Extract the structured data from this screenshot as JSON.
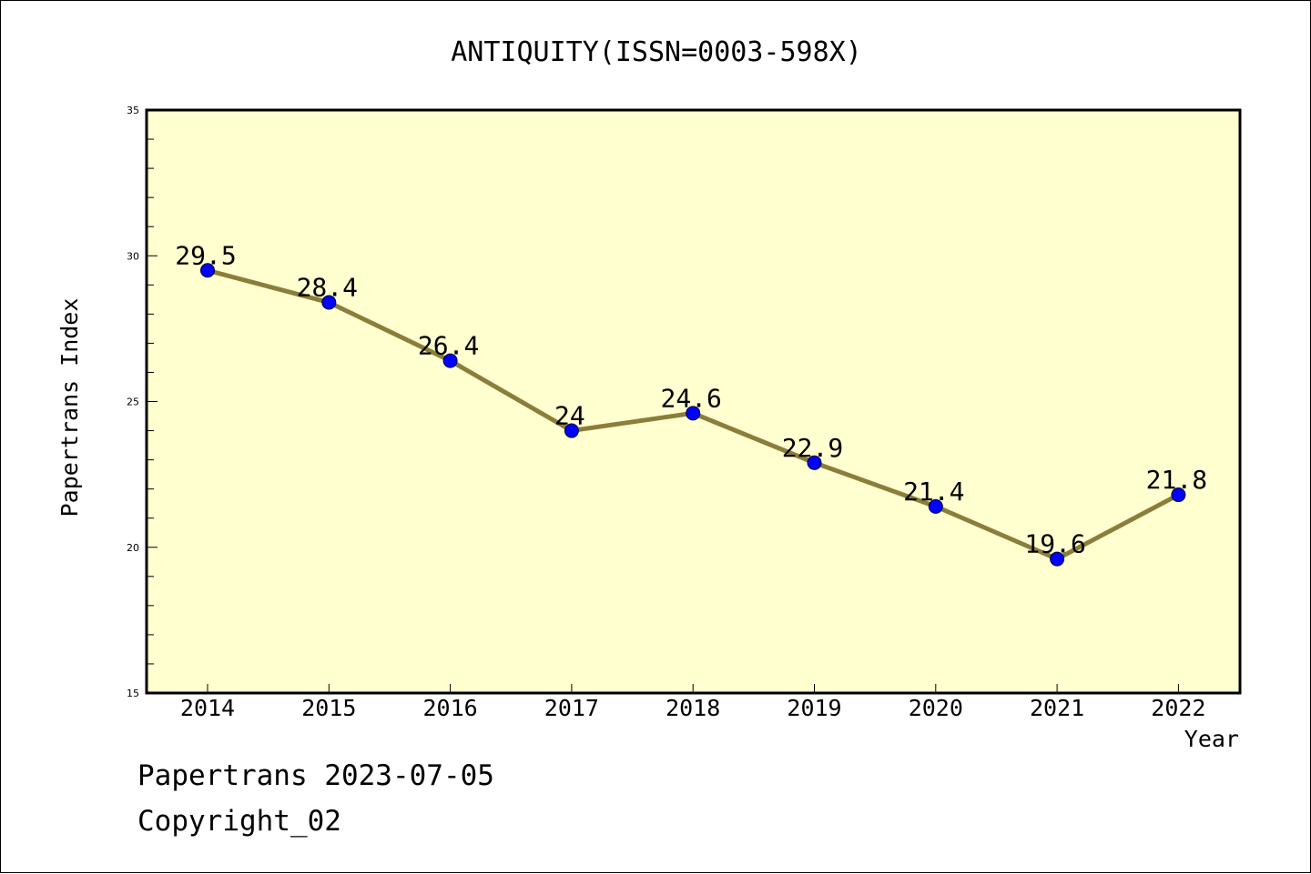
{
  "chart_data": {
    "type": "line",
    "title": "ANTIQUITY(ISSN=0003-598X)",
    "xlabel": "Year",
    "ylabel": "Papertrans Index",
    "categories": [
      "2014",
      "2015",
      "2016",
      "2017",
      "2018",
      "2019",
      "2020",
      "2021",
      "2022"
    ],
    "values": [
      29.5,
      28.4,
      26.4,
      24,
      24.6,
      22.9,
      21.4,
      19.6,
      21.8
    ],
    "data_labels": [
      "29.5",
      "28.4",
      "26.4",
      "24",
      "24.6",
      "22.9",
      "21.4",
      "19.6",
      "21.8"
    ],
    "ylim": [
      15,
      35
    ],
    "yticks": [
      15,
      20,
      25,
      30,
      35
    ],
    "grid": false,
    "plot_background": "#ffffd0",
    "line_color": "#8b7d3a",
    "marker_color": "#0000ff"
  },
  "footer": {
    "line1": "Papertrans 2023-07-05",
    "line2": "Copyright_02"
  }
}
